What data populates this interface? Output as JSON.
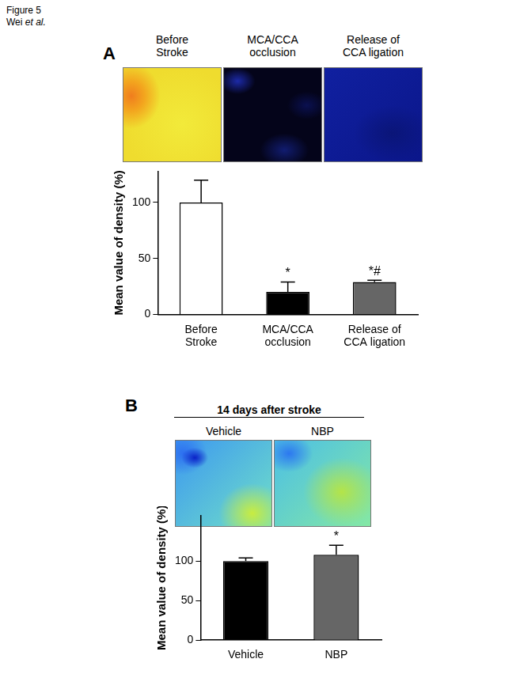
{
  "figure_label": "Figure 5",
  "authors": "Wei et al.",
  "chart_data": [
    {
      "panel": "A",
      "type": "bar",
      "categories": [
        "Before Stroke",
        "MCA/CCA occlusion",
        "Release of CCA ligation"
      ],
      "values": [
        100,
        20,
        29
      ],
      "errors": [
        20,
        9,
        1.5
      ],
      "significance": [
        null,
        "*",
        "*#"
      ],
      "colors": [
        "#ffffff",
        "#000000",
        "#666666"
      ],
      "y_label": "Mean value of density (%)",
      "ylim": [
        0,
        128
      ],
      "yticks": [
        0,
        50,
        100
      ],
      "grid": false
    },
    {
      "panel": "B",
      "type": "bar",
      "image_header": "14 days after stroke",
      "categories": [
        "Vehicle",
        "NBP"
      ],
      "values": [
        100,
        108
      ],
      "errors": [
        4,
        12
      ],
      "significance": [
        null,
        "*"
      ],
      "colors": [
        "#000000",
        "#666666"
      ],
      "y_label": "Mean value of density (%)",
      "ylim": [
        0,
        158
      ],
      "yticks": [
        0,
        50,
        100
      ],
      "grid": false
    }
  ]
}
